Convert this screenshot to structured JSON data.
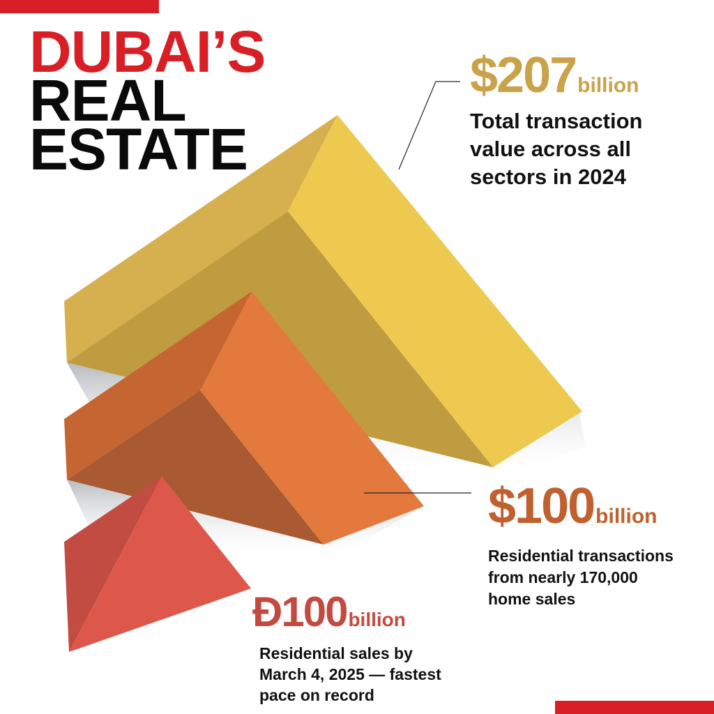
{
  "title": {
    "line1": "DUBAI’S",
    "line2": "REAL",
    "line3": "ESTATE"
  },
  "stats": [
    {
      "amount": "$207",
      "unit": "billion",
      "description": [
        "Total transaction",
        "value across all",
        "sectors in 2024"
      ],
      "color": "#c9a24a"
    },
    {
      "amount": "$100",
      "unit": "billion",
      "description": [
        "Residential transactions",
        "from nearly 170,000",
        "home sales"
      ],
      "color": "#c0602f"
    },
    {
      "currency_symbol": "Đ",
      "amount": "100",
      "unit": "billion",
      "description": [
        "Residential sales by",
        "March 4, 2025 — fastest",
        "pace on record"
      ],
      "color": "#c44a40"
    }
  ],
  "colors": {
    "accent_red": "#d91f26",
    "yellow": "#eec94f",
    "orange": "#e3793d",
    "red": "#dd584a"
  }
}
